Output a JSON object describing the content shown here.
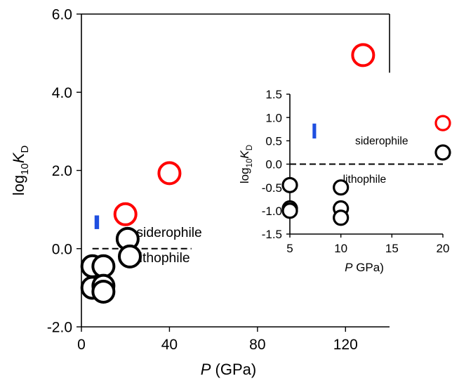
{
  "chart_data": [
    {
      "id": "main",
      "type": "scatter",
      "xlim": [
        0,
        140
      ],
      "ylim": [
        -2,
        6
      ],
      "xticks": [
        0,
        40,
        80,
        120
      ],
      "yticks": [
        -2,
        0,
        2,
        4,
        6
      ],
      "xtick_labels": [
        "0",
        "40",
        "80",
        "120"
      ],
      "ytick_labels": [
        "-2.0",
        "0.0",
        "2.0",
        "4.0",
        "6.0"
      ],
      "xlabel_italic": "P",
      "xlabel_rest": " (GPa)",
      "ylabel_base": "log",
      "ylabel_sub1": "10",
      "ylabel_italic": "K",
      "ylabel_sub2": "D",
      "grid": false,
      "series": [
        {
          "color": "#ff0000",
          "points": [
            [
              20,
              0.88
            ],
            [
              40,
              1.93
            ],
            [
              128,
              4.95
            ]
          ]
        },
        {
          "color": "#000000",
          "points": [
            [
              21,
              0.25
            ],
            [
              22,
              -0.2
            ],
            [
              5,
              -0.45
            ],
            [
              10,
              -0.45
            ],
            [
              5,
              -1.0
            ],
            [
              10,
              -0.95
            ],
            [
              10,
              -1.1
            ]
          ]
        }
      ],
      "error_bar": {
        "color": "#1f4fe0",
        "x": 7,
        "y_low": 0.5,
        "y_high": 0.85
      },
      "reference_line": {
        "y": 0,
        "x_start": 5,
        "x_end": 50,
        "style": "dashed"
      },
      "annotations": [
        {
          "text": "siderophile",
          "x": 25,
          "y": 0.3
        },
        {
          "text": "lithophile",
          "x": 25,
          "y": -0.35
        }
      ]
    },
    {
      "id": "inset",
      "type": "scatter",
      "xlim": [
        5,
        20
      ],
      "ylim": [
        -1.5,
        1.5
      ],
      "xticks": [
        5,
        10,
        15,
        20
      ],
      "yticks": [
        -1.5,
        -1.0,
        -0.5,
        0.0,
        0.5,
        1.0,
        1.5
      ],
      "xtick_labels": [
        "5",
        "10",
        "15",
        "20"
      ],
      "ytick_labels": [
        "-1.5",
        "-1.0",
        "-0.5",
        "0.0",
        "0.5",
        "1.0",
        "1.5"
      ],
      "xlabel_italic": "P",
      "xlabel_rest": " GPa)",
      "ylabel_base": "log",
      "ylabel_sub1": "10",
      "ylabel_italic": "K",
      "ylabel_sub2": "D",
      "grid": false,
      "series": [
        {
          "color": "#ff0000",
          "points": [
            [
              20,
              0.88
            ]
          ]
        },
        {
          "color": "#000000",
          "points": [
            [
              20,
              0.25
            ],
            [
              5,
              -0.45
            ],
            [
              10,
              -0.5
            ],
            [
              5,
              -0.95
            ],
            [
              5,
              -1.0
            ],
            [
              10,
              -0.95
            ],
            [
              10,
              -1.15
            ]
          ]
        }
      ],
      "error_bar": {
        "color": "#1f4fe0",
        "x": 7.4,
        "y_low": 0.55,
        "y_high": 0.87
      },
      "reference_line": {
        "y": 0,
        "x_start": 5,
        "x_end": 20,
        "style": "dashed"
      },
      "annotations": [
        {
          "text": "siderophile",
          "x": 11.4,
          "y": 0.42
        },
        {
          "text": "lithophile",
          "x": 10.2,
          "y": -0.4
        }
      ]
    }
  ]
}
